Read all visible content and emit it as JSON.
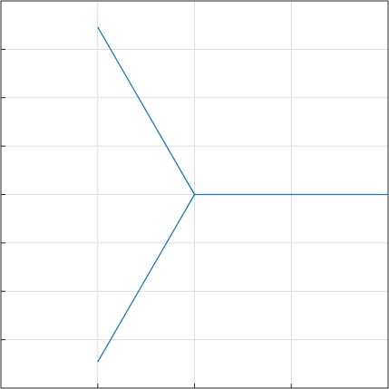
{
  "chart_data": {
    "type": "line",
    "title": "",
    "xlabel": "",
    "ylabel": "",
    "xlim": [
      0,
      4
    ],
    "ylim": [
      -4,
      4
    ],
    "x_ticks": [
      0,
      1,
      2,
      3,
      4
    ],
    "y_ticks": [
      -4,
      -3,
      -2,
      -1,
      0,
      1,
      2,
      3,
      4
    ],
    "grid": true,
    "tick_labels_visible": false,
    "series": [
      {
        "color": "#1f77b4",
        "segments": [
          [
            [
              1,
              3.46
            ],
            [
              2,
              0
            ]
          ],
          [
            [
              2,
              0
            ],
            [
              1,
              -3.46
            ]
          ],
          [
            [
              2,
              0
            ],
            [
              4,
              0
            ]
          ]
        ]
      }
    ]
  }
}
